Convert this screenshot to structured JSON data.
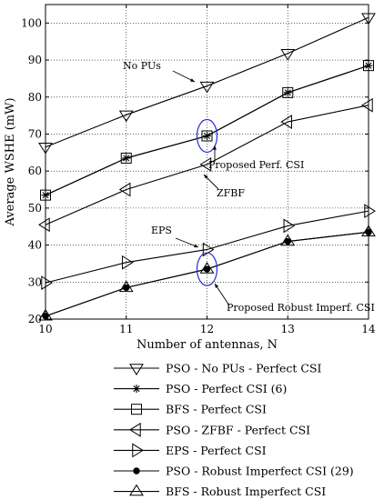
{
  "chart_data": {
    "type": "line",
    "xlabel": "Number of antennas, N",
    "ylabel": "Average WSHE (mW)",
    "xlim": [
      10,
      14
    ],
    "ylim": [
      20,
      105
    ],
    "xticks": [
      10,
      11,
      12,
      13,
      14
    ],
    "yticks": [
      20,
      30,
      40,
      50,
      60,
      70,
      80,
      90,
      100
    ],
    "grid": true,
    "legend_position": "below",
    "x": [
      10,
      11,
      12,
      13,
      14
    ],
    "series": [
      {
        "name": "PSO - No PUs - Perfect CSI",
        "marker": "triangle-down",
        "values": [
          66.5,
          75.2,
          83.0,
          91.8,
          101.5
        ]
      },
      {
        "name": "PSO - Perfect CSI (6)",
        "marker": "asterisk",
        "values": [
          53.5,
          63.5,
          69.5,
          81.2,
          88.5
        ]
      },
      {
        "name": "BFS - Perfect CSI",
        "marker": "square",
        "values": [
          53.5,
          63.5,
          69.5,
          81.2,
          88.5
        ]
      },
      {
        "name": "PSO - ZFBF - Perfect CSI",
        "marker": "triangle-left",
        "values": [
          45.5,
          55.0,
          61.8,
          73.3,
          77.8
        ]
      },
      {
        "name": "EPS - Perfect CSI",
        "marker": "triangle-right",
        "values": [
          29.8,
          35.3,
          38.8,
          45.2,
          49.2
        ]
      },
      {
        "name": "PSO - Robust Imperfect CSI (29)",
        "marker": "dot",
        "values": [
          20.8,
          28.5,
          33.5,
          41.0,
          43.5
        ]
      },
      {
        "name": "BFS - Robust Imperfect CSI",
        "marker": "triangle-up",
        "values": [
          20.8,
          28.5,
          33.5,
          41.0,
          43.5
        ]
      }
    ],
    "annotations": [
      {
        "text": "No PUs",
        "x": 11.4,
        "y": 88.5
      },
      {
        "text": "Proposed Perf. CSI",
        "x": 12.0,
        "y": 69.5
      },
      {
        "text": "ZFBF",
        "x": 12.0,
        "y": 61.8
      },
      {
        "text": "EPS",
        "x": 12.0,
        "y": 38.8
      },
      {
        "text": "Proposed Robust Imperf. CSI",
        "x": 12.0,
        "y": 33.5
      }
    ],
    "highlight_ellipses": [
      {
        "x": 12,
        "y": 69.5
      },
      {
        "x": 12,
        "y": 33.5
      }
    ]
  }
}
